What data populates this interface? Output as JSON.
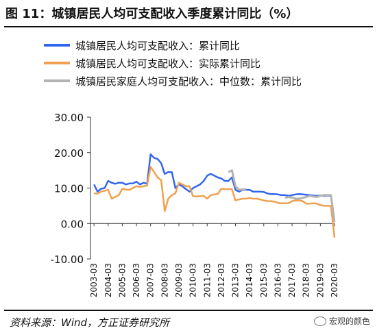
{
  "title": "图 11：城镇居民人均可支配收入季度累计同比（%）",
  "source": "资料来源：Wind，方正证券研究所",
  "watermark": "宏观的颜色",
  "chart_data": {
    "type": "line",
    "ylim": [
      -10,
      30
    ],
    "yticks": [
      -10,
      0,
      10,
      20,
      30
    ],
    "ytick_labels": [
      "-10.00",
      "0.00",
      "10.00",
      "20.00",
      "30.00"
    ],
    "xlim": [
      2003.0,
      2020.25
    ],
    "xticks": [
      2003.25,
      2004.25,
      2005.25,
      2006.25,
      2007.25,
      2008.25,
      2009.25,
      2010.25,
      2011.25,
      2012.25,
      2013.25,
      2014.25,
      2015.25,
      2016.25,
      2017.25,
      2018.25,
      2019.25,
      2020.25
    ],
    "xtick_labels": [
      "2003-03",
      "2004-03",
      "2005-03",
      "2006-03",
      "2007-03",
      "2008-03",
      "2009-03",
      "2010-03",
      "2011-03",
      "2012-03",
      "2013-03",
      "2014-03",
      "2015-03",
      "2016-03",
      "2017-03",
      "2018-03",
      "2019-03",
      "2020-03"
    ],
    "series": [
      {
        "name": "城镇居民人均可支配收入：累计同比",
        "color": "#3366ee",
        "x": [
          2003.25,
          2003.5,
          2003.75,
          2004.0,
          2004.25,
          2004.5,
          2004.75,
          2005.0,
          2005.25,
          2005.5,
          2005.75,
          2006.0,
          2006.25,
          2006.5,
          2006.75,
          2007.0,
          2007.25,
          2007.5,
          2007.75,
          2008.0,
          2008.25,
          2008.5,
          2008.75,
          2009.0,
          2009.25,
          2009.5,
          2009.75,
          2010.0,
          2010.25,
          2010.5,
          2010.75,
          2011.0,
          2011.25,
          2011.5,
          2011.75,
          2012.0,
          2012.25,
          2012.5,
          2012.75,
          2013.0,
          2013.25,
          2013.5,
          2013.75,
          2014.0,
          2014.25,
          2014.5,
          2014.75,
          2015.0,
          2015.25,
          2015.5,
          2015.75,
          2016.0,
          2016.25,
          2016.5,
          2016.75,
          2017.0,
          2017.25,
          2017.5,
          2017.75,
          2018.0,
          2018.25,
          2018.5,
          2018.75,
          2019.0,
          2019.25,
          2019.5,
          2019.75,
          2020.0,
          2020.25
        ],
        "y": [
          11.0,
          9.0,
          9.8,
          10.0,
          12.0,
          11.5,
          11.2,
          11.5,
          11.5,
          11.0,
          11.3,
          11.3,
          11.8,
          11.0,
          11.5,
          11.2,
          19.5,
          18.5,
          18.2,
          17.0,
          14.0,
          14.5,
          14.5,
          10.0,
          11.0,
          10.5,
          9.7,
          9.0,
          10.0,
          10.5,
          11.0,
          12.0,
          13.5,
          14.0,
          13.5,
          13.0,
          12.7,
          12.0,
          12.0,
          13.0,
          9.5,
          9.0,
          9.5,
          9.5,
          9.5,
          9.0,
          9.0,
          9.0,
          8.9,
          8.5,
          8.3,
          8.3,
          8.2,
          8.0,
          8.0,
          7.8,
          8.0,
          8.2,
          8.3,
          8.2,
          8.1,
          8.0,
          7.9,
          7.8,
          7.9,
          7.8,
          7.9,
          7.8,
          0.5
        ]
      },
      {
        "name": "城镇居民人均可支配收入：实际累计同比",
        "color": "#f0a050",
        "x": [
          2003.25,
          2003.5,
          2003.75,
          2004.0,
          2004.25,
          2004.5,
          2004.75,
          2005.0,
          2005.25,
          2005.5,
          2005.75,
          2006.0,
          2006.25,
          2006.5,
          2006.75,
          2007.0,
          2007.25,
          2007.5,
          2007.75,
          2008.0,
          2008.25,
          2008.5,
          2008.75,
          2009.0,
          2009.25,
          2009.5,
          2009.75,
          2010.0,
          2010.25,
          2010.5,
          2010.75,
          2011.0,
          2011.25,
          2011.5,
          2011.75,
          2012.0,
          2012.25,
          2012.5,
          2012.75,
          2013.0,
          2013.25,
          2013.5,
          2013.75,
          2014.0,
          2014.25,
          2014.5,
          2014.75,
          2015.0,
          2015.25,
          2015.5,
          2015.75,
          2016.0,
          2016.25,
          2016.5,
          2016.75,
          2017.0,
          2017.25,
          2017.5,
          2017.75,
          2018.0,
          2018.25,
          2018.5,
          2018.75,
          2019.0,
          2019.25,
          2019.5,
          2019.75,
          2020.0,
          2020.25
        ],
        "y": [
          8.5,
          8.4,
          9.0,
          9.2,
          9.5,
          7.0,
          7.5,
          8.0,
          9.8,
          9.6,
          9.5,
          10.0,
          10.5,
          10.3,
          10.5,
          10.7,
          16.0,
          14.5,
          13.0,
          12.2,
          3.5,
          7.0,
          8.0,
          8.5,
          11.5,
          11.0,
          10.5,
          10.5,
          7.7,
          7.6,
          7.7,
          7.8,
          7.0,
          8.0,
          8.2,
          8.3,
          9.8,
          9.7,
          9.7,
          9.7,
          6.5,
          6.8,
          7.0,
          7.0,
          7.2,
          7.0,
          7.0,
          6.8,
          6.5,
          6.3,
          6.3,
          6.2,
          5.8,
          5.7,
          5.7,
          5.7,
          6.3,
          6.5,
          6.5,
          6.3,
          5.6,
          5.6,
          5.7,
          5.6,
          5.2,
          5.0,
          5.0,
          5.0,
          -4.0
        ]
      },
      {
        "name": "城镇居民家庭人均可支配收入：中位数：累计同比",
        "color": "#b3b3b3",
        "x": [
          2012.75,
          2013.0,
          2013.25,
          2013.5,
          2013.75,
          2014.0,
          2016.75,
          2017.0,
          2017.25,
          2017.5,
          2017.75,
          2018.0,
          2018.25,
          2018.5,
          2018.75,
          2019.0,
          2019.25,
          2019.5,
          2019.75,
          2020.0,
          2020.25
        ],
        "y": [
          14.5,
          15.0,
          10.5,
          9.5,
          9.6,
          9.7,
          7.2,
          7.5,
          7.3,
          7.0,
          7.0,
          7.2,
          7.5,
          7.8,
          7.6,
          7.5,
          7.8,
          8.0,
          8.0,
          8.0,
          0.5
        ]
      }
    ]
  }
}
